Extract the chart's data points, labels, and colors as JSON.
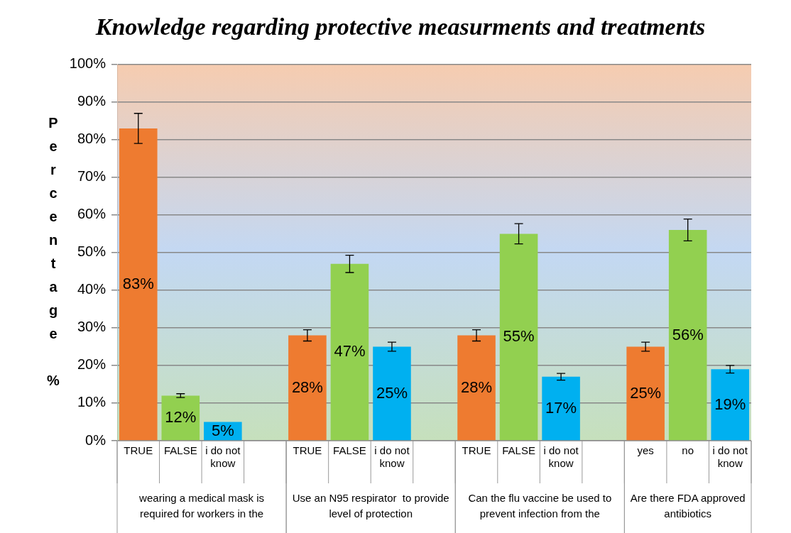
{
  "chart_data": {
    "type": "bar",
    "title": "Knowledge regarding protective measurments and treatments",
    "ylabel": "Percentage %",
    "categories": [
      "TRUE",
      "FALSE",
      "i do not know",
      null,
      "TRUE",
      "FALSE",
      "i do not know",
      null,
      "TRUE",
      "FALSE",
      "i do not know",
      null,
      "yes",
      "no",
      "i do not know"
    ],
    "values": [
      83,
      12,
      5,
      null,
      28,
      47,
      25,
      null,
      28,
      55,
      17,
      null,
      25,
      56,
      19
    ],
    "colors": [
      "#ee7b30",
      "#92d050",
      "#00b0f0",
      "#ee7b30",
      "#ee7b30",
      "#92d050",
      "#00b0f0",
      "#ee7b30",
      "#ee7b30",
      "#92d050",
      "#00b0f0",
      "#ee7b30",
      "#ee7b30",
      "#92d050",
      "#00b0f0"
    ],
    "errors": [
      4,
      0.5,
      null,
      null,
      1.5,
      2.3,
      1.2,
      null,
      1.5,
      2.7,
      0.9,
      null,
      1.2,
      2.9,
      1
    ],
    "value_labels": [
      "83%",
      "12%",
      "5%",
      null,
      "28%",
      "47%",
      "25%",
      null,
      "28%",
      "55%",
      "17%",
      null,
      "25%",
      "56%",
      "19%"
    ],
    "annotations": [
      "wearing a medical mask is required for workers in the",
      "Use an N95 respirator  to provide level of protection",
      "Can the flu vaccine be used to prevent infection from the",
      "Are there FDA approved antibiotics"
    ],
    "ylim": [
      0,
      100
    ],
    "yticks": [
      {
        "value": 0,
        "label": "0%"
      },
      {
        "value": 10,
        "label": "10%"
      },
      {
        "value": 20,
        "label": "20%"
      },
      {
        "value": 30,
        "label": "30%"
      },
      {
        "value": 40,
        "label": "40%"
      },
      {
        "value": 50,
        "label": "50%"
      },
      {
        "value": 60,
        "label": "60%"
      },
      {
        "value": 70,
        "label": "70%"
      },
      {
        "value": 80,
        "label": "80%"
      },
      {
        "value": 90,
        "label": "90%"
      },
      {
        "value": 100,
        "label": "100%"
      }
    ],
    "grid": "y",
    "legend": false
  }
}
